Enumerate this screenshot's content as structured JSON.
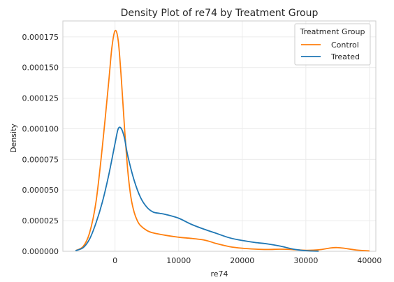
{
  "chart_data": {
    "type": "line",
    "title": "Density Plot of re74 by Treatment Group",
    "xlabel": "re74",
    "ylabel": "Density",
    "xlim": [
      -8200,
      41000
    ],
    "ylim": [
      0,
      0.000188
    ],
    "x_ticks": [
      0,
      10000,
      20000,
      30000,
      40000
    ],
    "y_ticks": [
      0,
      2.5e-05,
      5e-05,
      7.5e-05,
      0.0001,
      0.000125,
      0.00015,
      0.000175
    ],
    "x_tick_labels": [
      "0",
      "10000",
      "20000",
      "30000",
      "40000"
    ],
    "y_tick_labels": [
      "0.000000",
      "0.000025",
      "0.000050",
      "0.000075",
      "0.000100",
      "0.000125",
      "0.000150",
      "0.000175"
    ],
    "grid": true,
    "legend": {
      "title": "Treatment Group",
      "placement": "top-right"
    },
    "series": [
      {
        "name": "Control",
        "color": "#ff7f0e",
        "x": [
          -6200,
          -5000,
          -4000,
          -3000,
          -2000,
          -1000,
          -500,
          0,
          500,
          1000,
          1500,
          2000,
          2500,
          3000,
          3500,
          4000,
          5000,
          6000,
          8000,
          10000,
          12000,
          14000,
          15000,
          16000,
          18000,
          20000,
          22000,
          24000,
          26000,
          28000,
          30000,
          32000,
          34000,
          35000,
          36000,
          38000,
          40000
        ],
        "y": [
          5e-07,
          4e-06,
          1.5e-05,
          4e-05,
          8.5e-05,
          0.000138,
          0.000166,
          0.00018,
          0.000172,
          0.00014,
          0.0001,
          6.6e-05,
          4.4e-05,
          3.2e-05,
          2.5e-05,
          2.1e-05,
          1.7e-05,
          1.5e-05,
          1.3e-05,
          1.15e-05,
          1.05e-05,
          9.2e-06,
          7.8e-06,
          6.2e-06,
          3.8e-06,
          2.5e-06,
          1.8e-06,
          1.5e-06,
          1.7e-06,
          1.4e-06,
          8e-07,
          1.2e-06,
          2.8e-06,
          3e-06,
          2.5e-06,
          1e-06,
          3e-07
        ]
      },
      {
        "name": "Treated",
        "color": "#1f77b4",
        "x": [
          -6200,
          -5000,
          -4000,
          -3000,
          -2000,
          -1000,
          0,
          500,
          1000,
          1500,
          2000,
          3000,
          4000,
          5000,
          6000,
          7000,
          8000,
          10000,
          12000,
          14000,
          16000,
          18000,
          20000,
          22000,
          24000,
          26000,
          28000,
          30000,
          32000
        ],
        "y": [
          5e-07,
          3e-06,
          1e-05,
          2.3e-05,
          4e-05,
          6.2e-05,
          8.8e-05,
          0.0001,
          0.0001,
          9.2e-05,
          7.8e-05,
          5.8e-05,
          4.4e-05,
          3.6e-05,
          3.2e-05,
          3.1e-05,
          3e-05,
          2.7e-05,
          2.2e-05,
          1.8e-05,
          1.45e-05,
          1.1e-05,
          8.8e-06,
          7.2e-06,
          6e-06,
          4.2e-06,
          1.8e-06,
          5e-07,
          1e-07
        ]
      }
    ]
  }
}
